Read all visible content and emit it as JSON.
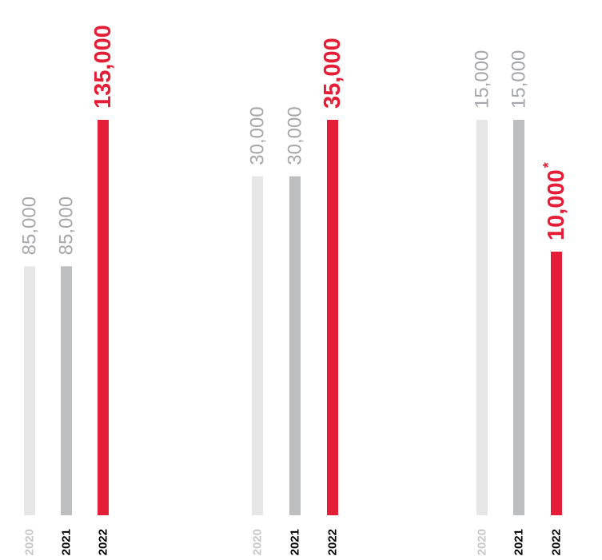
{
  "colors": {
    "bar_2020": "#e6e6e6",
    "bar_2021": "#bcbec0",
    "bar_2022": "#e31e36",
    "label_2020": "#c8c8c8",
    "label_2021": "#000000",
    "label_2022": "#000000",
    "value_grey": "#a5a7aa",
    "value_red": "#e31e36"
  },
  "chart_data": [
    {
      "type": "bar",
      "categories": [
        "2020",
        "2021",
        "2022"
      ],
      "values": [
        85000,
        85000,
        135000
      ],
      "value_labels": [
        "85,000",
        "85,000",
        "135,000"
      ],
      "footnote_marks": [
        "",
        "",
        ""
      ]
    },
    {
      "type": "bar",
      "categories": [
        "2020",
        "2021",
        "2022"
      ],
      "values": [
        30000,
        30000,
        35000
      ],
      "value_labels": [
        "30,000",
        "30,000",
        "35,000"
      ],
      "footnote_marks": [
        "",
        "",
        ""
      ]
    },
    {
      "type": "bar",
      "categories": [
        "2020",
        "2021",
        "2022"
      ],
      "values": [
        15000,
        15000,
        10000
      ],
      "value_labels": [
        "15,000",
        "15,000",
        "10,000"
      ],
      "footnote_marks": [
        "",
        "",
        "*"
      ]
    }
  ]
}
